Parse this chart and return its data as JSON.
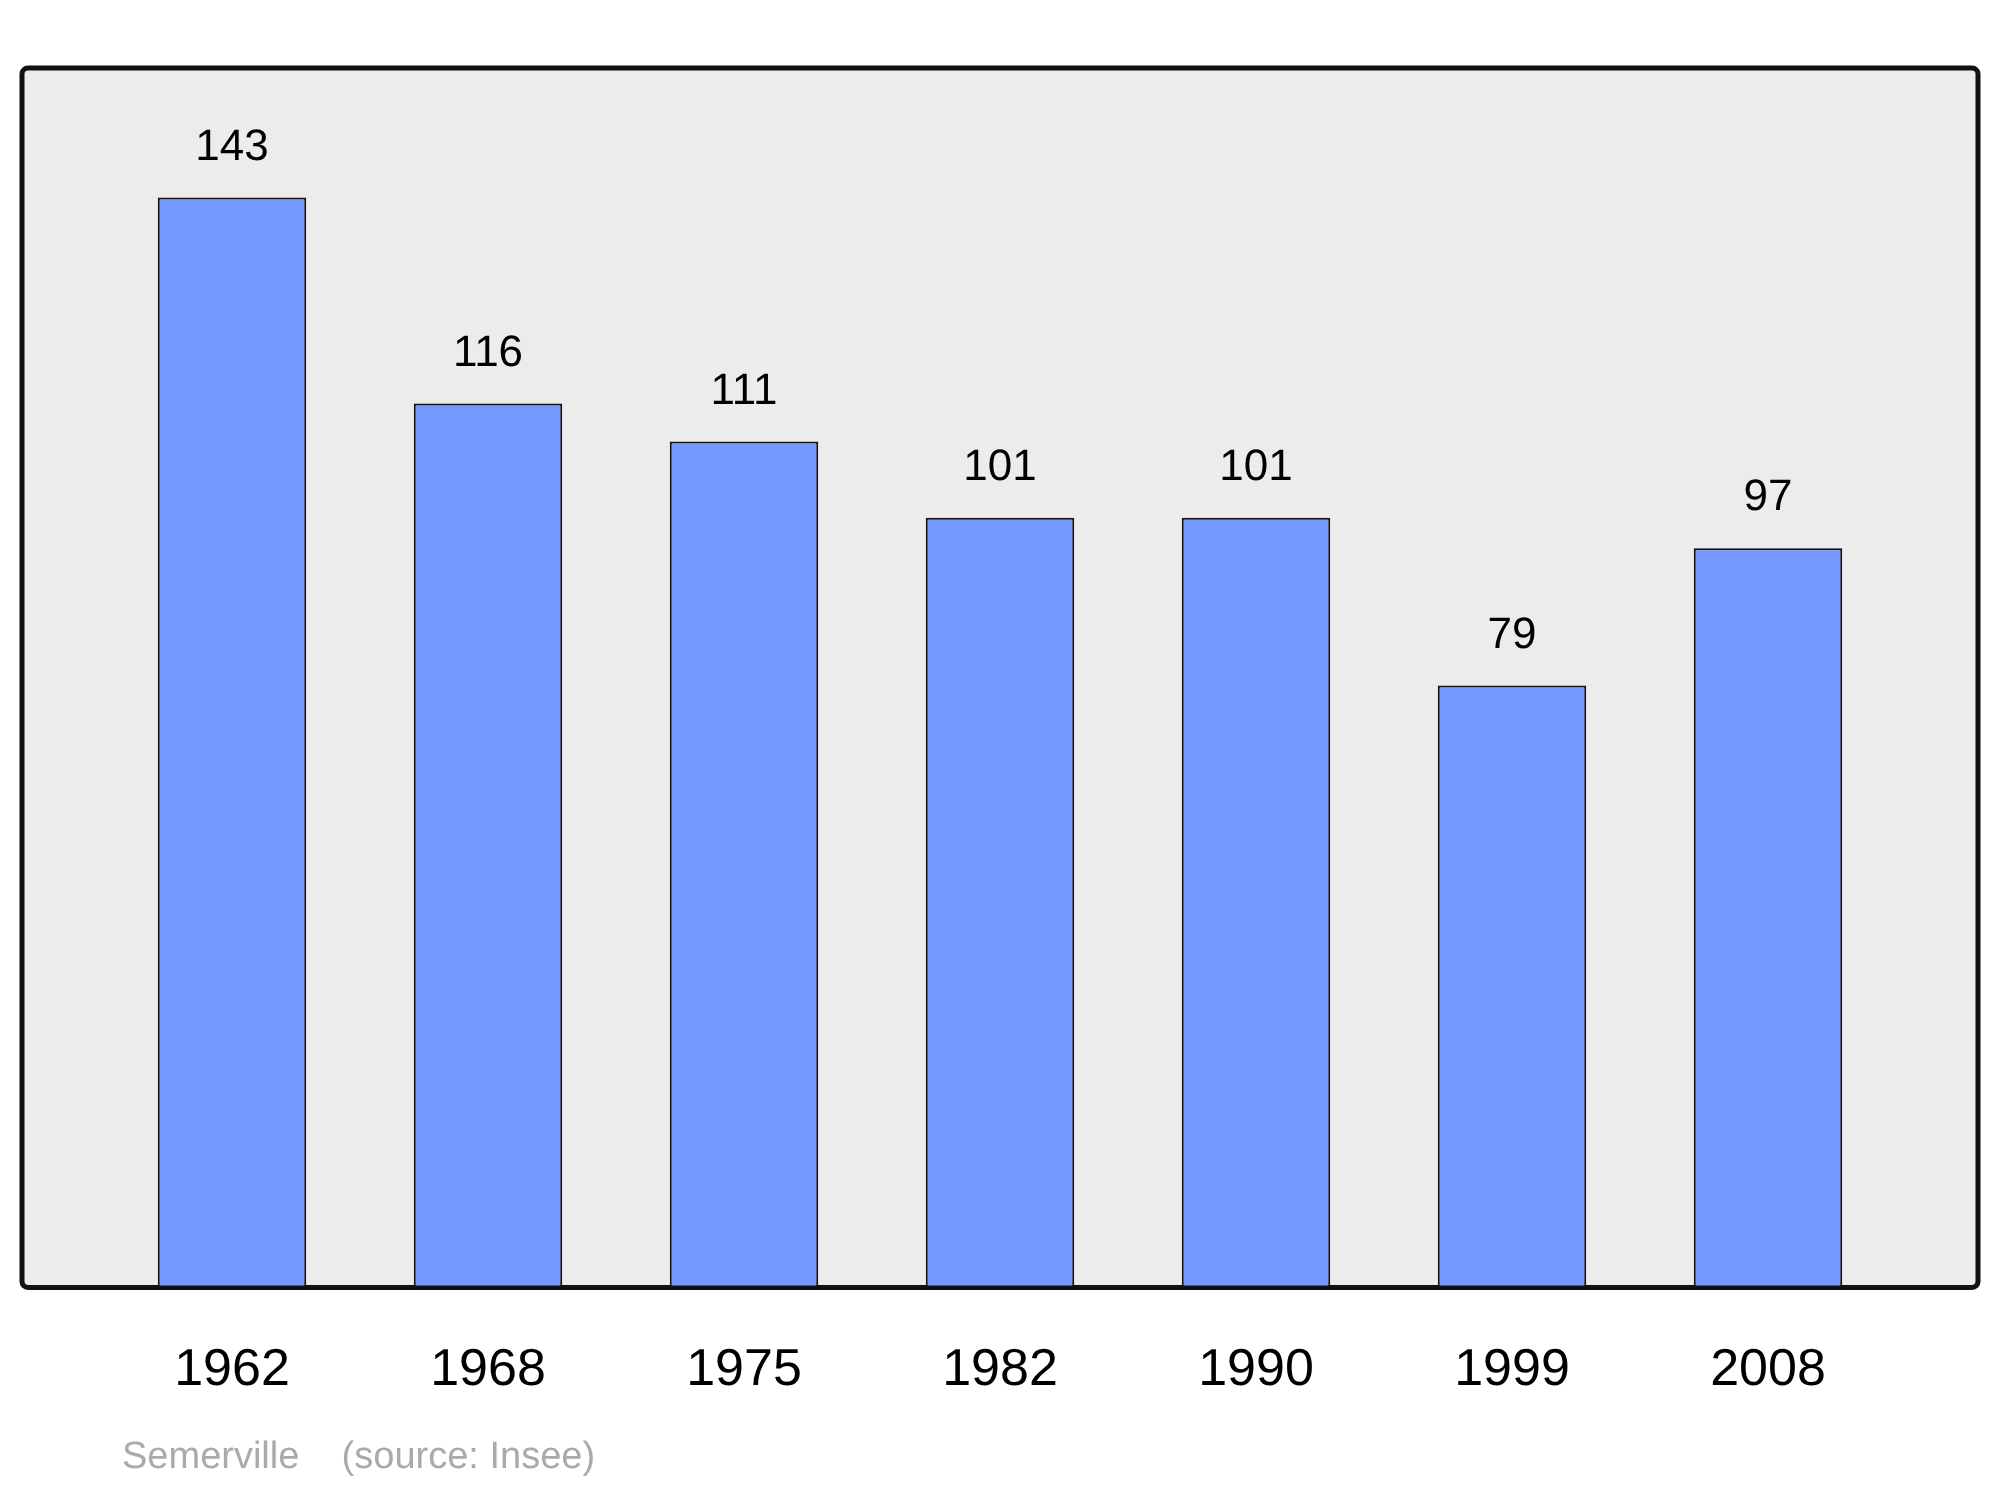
{
  "chart_data": {
    "type": "bar",
    "categories": [
      "1962",
      "1968",
      "1975",
      "1982",
      "1990",
      "1999",
      "2008"
    ],
    "values": [
      143,
      116,
      111,
      101,
      101,
      79,
      97
    ],
    "color": "#7399ff",
    "data_labels": true,
    "tick_labels": "x",
    "annotations": [
      "Semerville    (source: Insee)"
    ]
  }
}
